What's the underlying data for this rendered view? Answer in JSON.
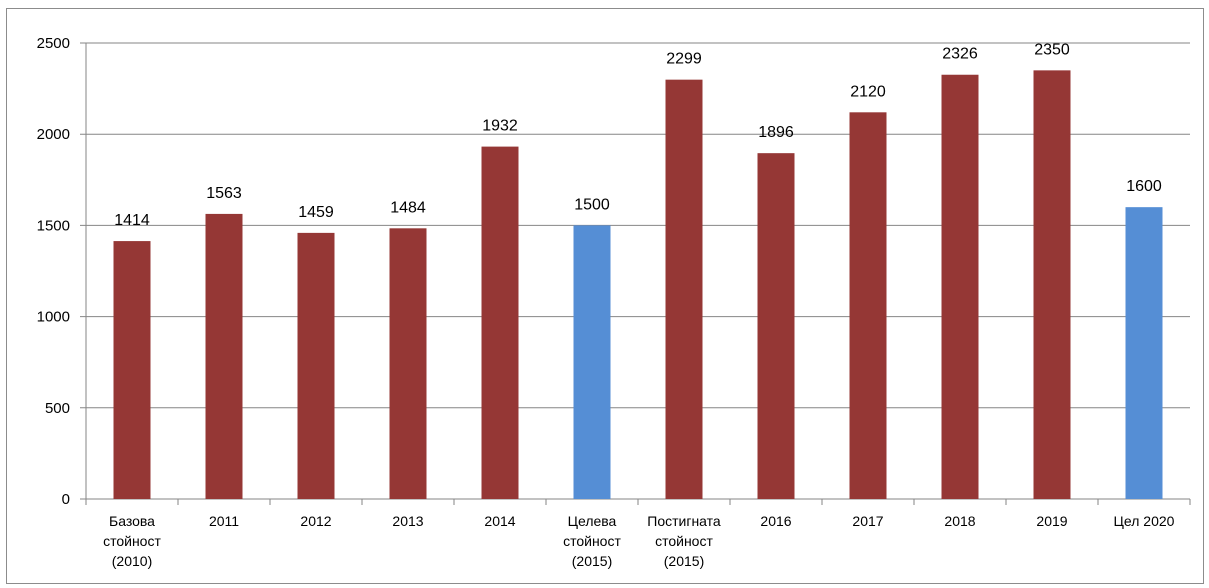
{
  "chart_data": {
    "type": "bar",
    "title": "",
    "xlabel": "",
    "ylabel": "",
    "ylim": [
      0,
      2500
    ],
    "yticks": [
      0,
      500,
      1000,
      1500,
      2000,
      2500
    ],
    "grid": "horizontal",
    "legend": "none",
    "categories": [
      [
        "Базова",
        "стойност",
        "(2010)"
      ],
      [
        "2011"
      ],
      [
        "2012"
      ],
      [
        "2013"
      ],
      [
        "2014"
      ],
      [
        "Целева",
        "стойност",
        "(2015)"
      ],
      [
        "Постигната",
        "стойност",
        "(2015)"
      ],
      [
        "2016"
      ],
      [
        "2017"
      ],
      [
        "2018"
      ],
      [
        "2019"
      ],
      [
        "Цел 2020"
      ]
    ],
    "values": [
      1414,
      1563,
      1459,
      1484,
      1932,
      1500,
      2299,
      1896,
      2120,
      2326,
      2350,
      1600
    ],
    "bar_colors": [
      "#953735",
      "#953735",
      "#953735",
      "#953735",
      "#953735",
      "#558ed5",
      "#953735",
      "#953735",
      "#953735",
      "#953735",
      "#953735",
      "#558ed5"
    ],
    "colors": {
      "actual": "#953735",
      "target": "#558ed5",
      "grid": "#868686"
    }
  }
}
